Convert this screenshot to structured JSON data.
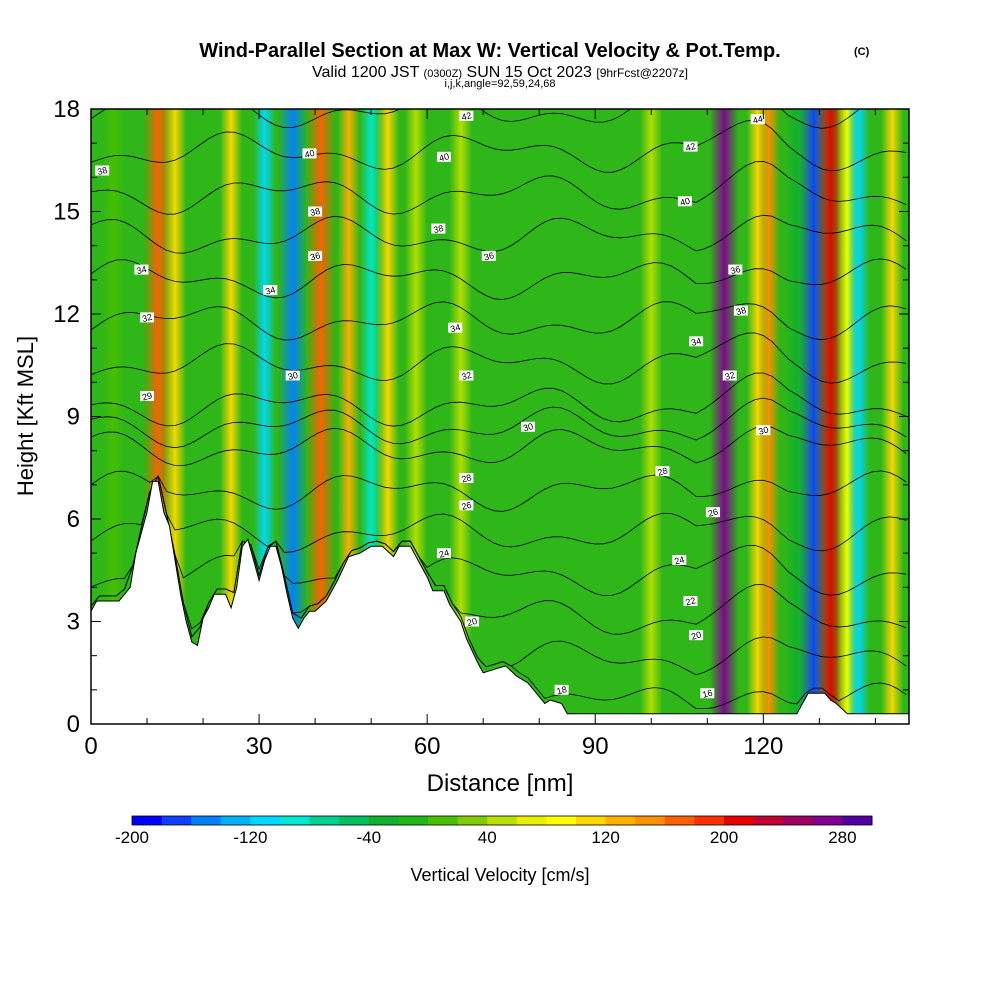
{
  "header": {
    "title": "Wind-Parallel Section at Max W: Vertical Velocity & Pot.Temp.",
    "copyright": "(C)",
    "valid_prefix": "Valid 1200 JST",
    "valid_utc": "(0300Z)",
    "valid_date": "SUN 15 Oct 2023",
    "forecast": "[9hrFcst@2207z]",
    "indices": "i,j,k,angle=92,59,24,68"
  },
  "chart_data": {
    "type": "heatmap",
    "xlabel": "Distance [nm]",
    "ylabel": "Height [Kft MSL]",
    "xlim": [
      0,
      146
    ],
    "ylim": [
      0,
      18
    ],
    "xticks": [
      "0",
      "30",
      "60",
      "90",
      "120"
    ],
    "yticks": [
      "0",
      "3",
      "6",
      "9",
      "12",
      "15",
      "18"
    ],
    "colorbar": {
      "label": "Vertical Velocity [cm/s]",
      "tick_labels": [
        "-200",
        "-120",
        "-40",
        "40",
        "120",
        "200",
        "280"
      ],
      "colors": [
        "#0000ff",
        "#0f40ff",
        "#0080ff",
        "#00b0ff",
        "#00d8ff",
        "#00e8d0",
        "#00d090",
        "#00c060",
        "#10b030",
        "#20b818",
        "#48c000",
        "#80cc00",
        "#b8e000",
        "#e8f000",
        "#ffff00",
        "#ffd800",
        "#ffb000",
        "#ff9000",
        "#ff6000",
        "#ff3000",
        "#e80000",
        "#c00030",
        "#a00060",
        "#800090",
        "#5000a0"
      ]
    },
    "velocity_bands": [
      {
        "x": 4,
        "w": 0.0
      },
      {
        "x": 12,
        "w": 160
      },
      {
        "x": 15,
        "w": 100
      },
      {
        "x": 25,
        "w": 90
      },
      {
        "x": 31,
        "w": -120
      },
      {
        "x": 36,
        "w": -160
      },
      {
        "x": 41,
        "w": 160
      },
      {
        "x": 46,
        "w": 110
      },
      {
        "x": 50,
        "w": -110
      },
      {
        "x": 53,
        "w": 90
      },
      {
        "x": 58,
        "w": 30
      },
      {
        "x": 66,
        "w": 30
      },
      {
        "x": 100,
        "w": 30
      },
      {
        "x": 113,
        "w": 260
      },
      {
        "x": 119,
        "w": 90
      },
      {
        "x": 121,
        "w": 130
      },
      {
        "x": 126,
        "w": -40
      },
      {
        "x": 129,
        "w": -190
      },
      {
        "x": 132,
        "w": 200
      },
      {
        "x": 135,
        "w": 70
      },
      {
        "x": 137,
        "w": -120
      },
      {
        "x": 143,
        "w": 90
      }
    ],
    "theta_contours": [
      {
        "label": "16",
        "labels_at": [
          [
            110,
            0.9
          ]
        ]
      },
      {
        "label": "18",
        "labels_at": [
          [
            84,
            1.0
          ]
        ]
      },
      {
        "label": "20",
        "labels_at": [
          [
            68,
            3.0
          ],
          [
            108,
            2.6
          ]
        ]
      },
      {
        "label": "22",
        "labels_at": [
          [
            107,
            3.6
          ]
        ]
      },
      {
        "label": "24",
        "labels_at": [
          [
            63,
            5.0
          ],
          [
            105,
            4.8
          ]
        ]
      },
      {
        "label": "26",
        "labels_at": [
          [
            67,
            6.4
          ],
          [
            111,
            6.2
          ]
        ]
      },
      {
        "label": "28",
        "labels_at": [
          [
            67,
            7.2
          ],
          [
            102,
            7.4
          ]
        ]
      },
      {
        "label": "29",
        "labels_at": [
          [
            10,
            9.6
          ]
        ]
      },
      {
        "label": "30",
        "labels_at": [
          [
            36,
            10.2
          ],
          [
            78,
            8.7
          ],
          [
            120,
            8.6
          ]
        ]
      },
      {
        "label": "32",
        "labels_at": [
          [
            10,
            11.9
          ],
          [
            67,
            10.2
          ],
          [
            114,
            10.2
          ]
        ]
      },
      {
        "label": "34",
        "labels_at": [
          [
            9,
            13.3
          ],
          [
            32,
            12.7
          ],
          [
            65,
            11.6
          ],
          [
            108,
            11.2
          ]
        ]
      },
      {
        "label": "36",
        "labels_at": [
          [
            40,
            13.7
          ],
          [
            71,
            13.7
          ],
          [
            115,
            13.3
          ]
        ]
      },
      {
        "label": "38",
        "labels_at": [
          [
            2,
            16.2
          ],
          [
            40,
            15.0
          ],
          [
            62,
            14.5
          ],
          [
            116,
            12.1
          ]
        ]
      },
      {
        "label": "40",
        "labels_at": [
          [
            39,
            16.7
          ],
          [
            63,
            16.6
          ],
          [
            106,
            15.3
          ]
        ]
      },
      {
        "label": "42",
        "labels_at": [
          [
            67,
            17.8
          ],
          [
            107,
            16.9
          ]
        ]
      },
      {
        "label": "44",
        "labels_at": [
          [
            119,
            17.7
          ]
        ]
      }
    ],
    "terrain_height_kft": [
      [
        0,
        3.3
      ],
      [
        1,
        3.6
      ],
      [
        5,
        3.6
      ],
      [
        7,
        4.0
      ],
      [
        8,
        5.0
      ],
      [
        10,
        6.2
      ],
      [
        11,
        7.1
      ],
      [
        12,
        7.1
      ],
      [
        13,
        6.2
      ],
      [
        14,
        5.8
      ],
      [
        15,
        4.8
      ],
      [
        16,
        3.8
      ],
      [
        17,
        3.0
      ],
      [
        18,
        2.4
      ],
      [
        19,
        2.3
      ],
      [
        20,
        3.1
      ],
      [
        21,
        3.4
      ],
      [
        22,
        3.8
      ],
      [
        24,
        3.8
      ],
      [
        25,
        3.4
      ],
      [
        26,
        4.0
      ],
      [
        27,
        5.2
      ],
      [
        28,
        5.4
      ],
      [
        29,
        4.8
      ],
      [
        30,
        4.2
      ],
      [
        31,
        4.8
      ],
      [
        32,
        5.2
      ],
      [
        33,
        5.2
      ],
      [
        34,
        4.6
      ],
      [
        35,
        3.8
      ],
      [
        36,
        3.1
      ],
      [
        37,
        2.8
      ],
      [
        38,
        3.1
      ],
      [
        39,
        3.3
      ],
      [
        40,
        3.3
      ],
      [
        42,
        3.6
      ],
      [
        44,
        4.2
      ],
      [
        46,
        4.9
      ],
      [
        48,
        5.0
      ],
      [
        50,
        5.2
      ],
      [
        52,
        5.2
      ],
      [
        54,
        4.9
      ],
      [
        55,
        5.2
      ],
      [
        57,
        5.2
      ],
      [
        59,
        4.6
      ],
      [
        60,
        4.3
      ],
      [
        61,
        3.9
      ],
      [
        63,
        3.9
      ],
      [
        64,
        3.5
      ],
      [
        66,
        3.0
      ],
      [
        67,
        2.5
      ],
      [
        69,
        1.8
      ],
      [
        70,
        1.5
      ],
      [
        72,
        1.6
      ],
      [
        74,
        1.7
      ],
      [
        76,
        1.4
      ],
      [
        78,
        1.2
      ],
      [
        79,
        1.0
      ],
      [
        80,
        0.8
      ],
      [
        81,
        0.6
      ],
      [
        82,
        0.7
      ],
      [
        84,
        0.6
      ],
      [
        85,
        0.3
      ],
      [
        90,
        0.3
      ],
      [
        126,
        0.3
      ],
      [
        127,
        0.6
      ],
      [
        128,
        0.9
      ],
      [
        131,
        0.9
      ],
      [
        132,
        0.7
      ],
      [
        133,
        0.6
      ],
      [
        135,
        0.3
      ],
      [
        146,
        0.3
      ]
    ]
  }
}
